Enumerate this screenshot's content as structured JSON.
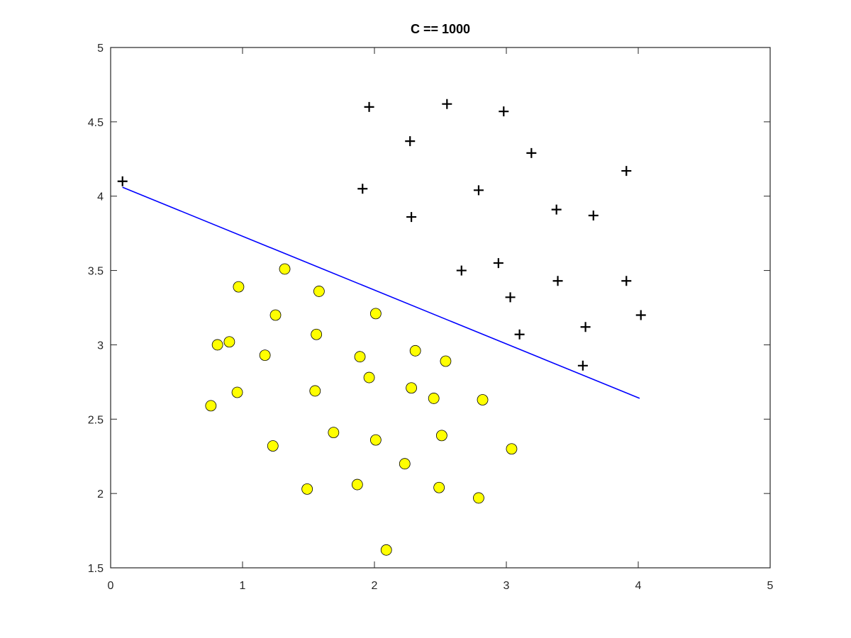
{
  "chart_data": {
    "type": "scatter",
    "title": "C == 1000",
    "xlabel": "",
    "ylabel": "",
    "xlim": [
      0,
      5
    ],
    "ylim": [
      1.5,
      5
    ],
    "xticks": [
      "0",
      "1",
      "2",
      "3",
      "4",
      "5"
    ],
    "yticks": [
      "1.5",
      "2",
      "2.5",
      "3",
      "3.5",
      "4",
      "4.5",
      "5"
    ],
    "grid": false,
    "box": true,
    "series": [
      {
        "marker": "plus",
        "color": "#000000",
        "points": [
          [
            0.09,
            4.1
          ],
          [
            1.96,
            4.6
          ],
          [
            2.55,
            4.62
          ],
          [
            2.98,
            4.57
          ],
          [
            2.27,
            4.37
          ],
          [
            3.19,
            4.29
          ],
          [
            3.91,
            4.17
          ],
          [
            1.91,
            4.05
          ],
          [
            2.79,
            4.04
          ],
          [
            3.38,
            3.91
          ],
          [
            3.66,
            3.87
          ],
          [
            2.28,
            3.86
          ],
          [
            2.66,
            3.5
          ],
          [
            2.94,
            3.55
          ],
          [
            3.39,
            3.43
          ],
          [
            3.91,
            3.43
          ],
          [
            3.03,
            3.32
          ],
          [
            4.02,
            3.2
          ],
          [
            3.1,
            3.07
          ],
          [
            3.6,
            3.12
          ],
          [
            3.58,
            2.86
          ]
        ]
      },
      {
        "marker": "circle",
        "color": "#ffff00",
        "edge": "#000000",
        "points": [
          [
            1.32,
            3.51
          ],
          [
            0.97,
            3.39
          ],
          [
            1.58,
            3.36
          ],
          [
            1.25,
            3.2
          ],
          [
            2.01,
            3.21
          ],
          [
            1.56,
            3.07
          ],
          [
            0.81,
            3.0
          ],
          [
            0.9,
            3.02
          ],
          [
            1.17,
            2.93
          ],
          [
            1.89,
            2.92
          ],
          [
            2.31,
            2.96
          ],
          [
            2.54,
            2.89
          ],
          [
            1.96,
            2.78
          ],
          [
            1.55,
            2.69
          ],
          [
            0.96,
            2.68
          ],
          [
            2.28,
            2.71
          ],
          [
            2.45,
            2.64
          ],
          [
            2.82,
            2.63
          ],
          [
            0.76,
            2.59
          ],
          [
            1.69,
            2.41
          ],
          [
            2.51,
            2.39
          ],
          [
            2.01,
            2.36
          ],
          [
            1.23,
            2.32
          ],
          [
            3.04,
            2.3
          ],
          [
            2.23,
            2.2
          ],
          [
            1.87,
            2.06
          ],
          [
            1.49,
            2.03
          ],
          [
            2.49,
            2.04
          ],
          [
            2.79,
            1.97
          ],
          [
            2.09,
            1.62
          ]
        ]
      },
      {
        "marker": "line",
        "color": "#0000ff",
        "points": [
          [
            0.09,
            4.06
          ],
          [
            4.01,
            2.64
          ]
        ]
      }
    ]
  }
}
